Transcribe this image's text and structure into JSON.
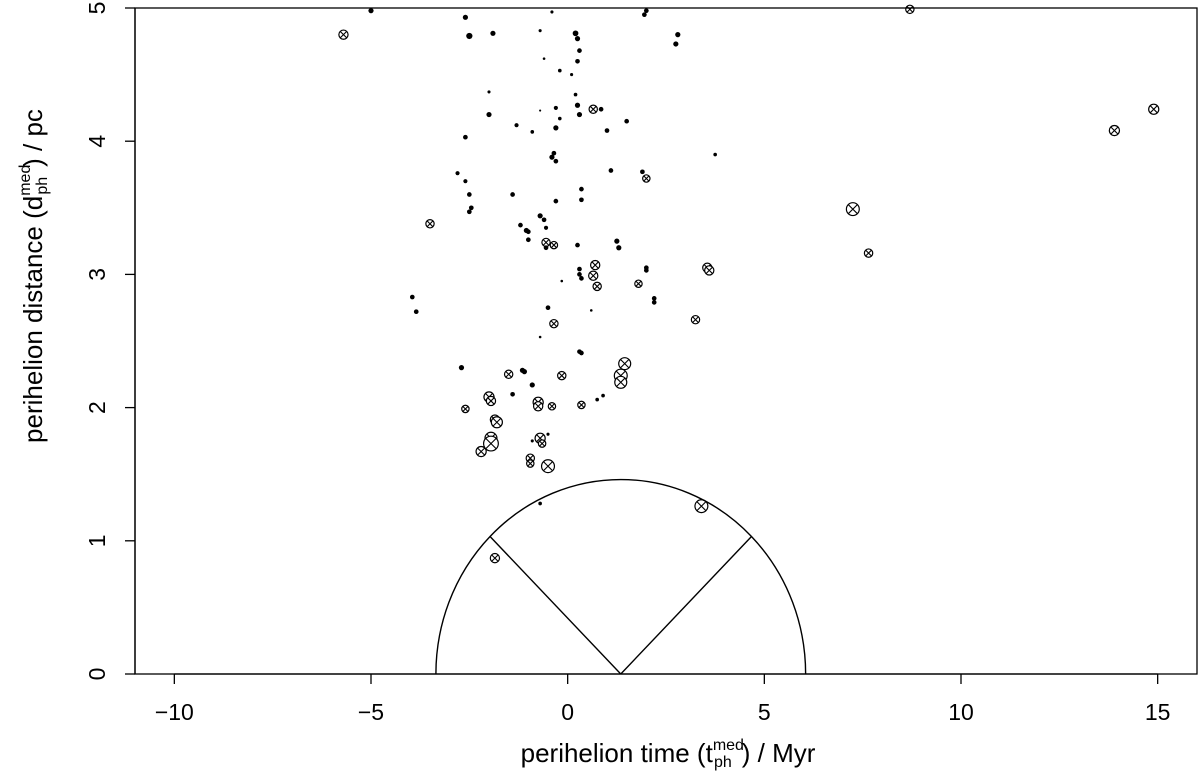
{
  "chart_data": {
    "type": "scatter",
    "xlabel": {
      "prefix": "perihelion time (t",
      "sup": "med",
      "sub": "ph",
      "suffix": ") / Myr"
    },
    "ylabel": {
      "prefix": "perihelion distance (d",
      "sup": "med",
      "sub": "ph",
      "suffix": ") / pc"
    },
    "xlim": [
      -11,
      16
    ],
    "ylim": [
      0,
      5
    ],
    "x_ticks": [
      -10,
      -5,
      0,
      5,
      10,
      15
    ],
    "x_tick_labels": [
      "−10",
      "−5",
      "0",
      "5",
      "10",
      "15"
    ],
    "y_ticks": [
      0,
      1,
      2,
      3,
      4,
      5
    ],
    "y_tick_labels": [
      "0",
      "1",
      "2",
      "3",
      "4",
      "5"
    ],
    "grid": false,
    "overlay": {
      "semicircle_center": [
        1.35,
        0
      ],
      "semicircle_radius_x": 4.7,
      "semicircle_top_y": 1.46,
      "radial_line_angles_deg": [
        45,
        135
      ]
    },
    "marker_legend": {
      "dot": "filled dot",
      "crossed": "circle with cross"
    },
    "points": [
      {
        "x": -5.7,
        "y": 4.8,
        "m": "c",
        "s": 1
      },
      {
        "x": -5.0,
        "y": 4.98,
        "m": "d",
        "s": 1
      },
      {
        "x": -2.6,
        "y": 4.93,
        "m": "d",
        "s": 1
      },
      {
        "x": -2.5,
        "y": 4.79,
        "m": "d",
        "s": 1.2
      },
      {
        "x": -1.9,
        "y": 4.81,
        "m": "d",
        "s": 1
      },
      {
        "x": -0.7,
        "y": 4.83,
        "m": "d",
        "s": 0.6
      },
      {
        "x": -0.4,
        "y": 4.97,
        "m": "d",
        "s": 0.6
      },
      {
        "x": 0.2,
        "y": 4.81,
        "m": "d",
        "s": 1.1
      },
      {
        "x": 0.25,
        "y": 4.77,
        "m": "d",
        "s": 1
      },
      {
        "x": 0.3,
        "y": 4.68,
        "m": "d",
        "s": 0.9
      },
      {
        "x": 0.25,
        "y": 4.6,
        "m": "d",
        "s": 0.9
      },
      {
        "x": -0.2,
        "y": 4.53,
        "m": "d",
        "s": 0.7
      },
      {
        "x": -0.6,
        "y": 4.62,
        "m": "d",
        "s": 0.5
      },
      {
        "x": 0.1,
        "y": 4.5,
        "m": "d",
        "s": 0.6
      },
      {
        "x": 1.95,
        "y": 4.95,
        "m": "d",
        "s": 0.9
      },
      {
        "x": 2.0,
        "y": 4.98,
        "m": "d",
        "s": 0.9
      },
      {
        "x": 2.8,
        "y": 4.8,
        "m": "d",
        "s": 1
      },
      {
        "x": 2.75,
        "y": 4.73,
        "m": "d",
        "s": 1
      },
      {
        "x": 8.7,
        "y": 4.99,
        "m": "c",
        "s": 0.9
      },
      {
        "x": -2.0,
        "y": 4.37,
        "m": "d",
        "s": 0.6
      },
      {
        "x": -2.0,
        "y": 4.2,
        "m": "d",
        "s": 1
      },
      {
        "x": -1.3,
        "y": 4.12,
        "m": "d",
        "s": 0.8
      },
      {
        "x": -0.9,
        "y": 4.07,
        "m": "d",
        "s": 0.7
      },
      {
        "x": -0.7,
        "y": 4.23,
        "m": "d",
        "s": 0.4
      },
      {
        "x": -0.3,
        "y": 4.25,
        "m": "d",
        "s": 0.8
      },
      {
        "x": -0.2,
        "y": 4.17,
        "m": "d",
        "s": 0.7
      },
      {
        "x": 0.2,
        "y": 4.35,
        "m": "d",
        "s": 0.7
      },
      {
        "x": 0.25,
        "y": 4.27,
        "m": "d",
        "s": 1
      },
      {
        "x": 0.3,
        "y": 4.2,
        "m": "d",
        "s": 1
      },
      {
        "x": -0.3,
        "y": 4.1,
        "m": "d",
        "s": 1
      },
      {
        "x": 0.65,
        "y": 4.24,
        "m": "c",
        "s": 0.9
      },
      {
        "x": 0.85,
        "y": 4.24,
        "m": "d",
        "s": 0.9
      },
      {
        "x": 1.0,
        "y": 4.08,
        "m": "d",
        "s": 0.9
      },
      {
        "x": 1.5,
        "y": 4.15,
        "m": "d",
        "s": 0.9
      },
      {
        "x": -2.6,
        "y": 4.03,
        "m": "d",
        "s": 0.9
      },
      {
        "x": -0.4,
        "y": 3.88,
        "m": "d",
        "s": 1
      },
      {
        "x": -0.35,
        "y": 3.91,
        "m": "d",
        "s": 0.9
      },
      {
        "x": -0.3,
        "y": 3.85,
        "m": "d",
        "s": 0.9
      },
      {
        "x": -2.8,
        "y": 3.76,
        "m": "d",
        "s": 0.8
      },
      {
        "x": -2.6,
        "y": 3.7,
        "m": "d",
        "s": 0.8
      },
      {
        "x": -2.5,
        "y": 3.6,
        "m": "d",
        "s": 0.9
      },
      {
        "x": -2.45,
        "y": 3.5,
        "m": "d",
        "s": 0.9
      },
      {
        "x": -2.5,
        "y": 3.47,
        "m": "d",
        "s": 0.9
      },
      {
        "x": -1.4,
        "y": 3.6,
        "m": "d",
        "s": 0.9
      },
      {
        "x": -0.3,
        "y": 3.55,
        "m": "d",
        "s": 0.9
      },
      {
        "x": 0.35,
        "y": 3.64,
        "m": "d",
        "s": 0.9
      },
      {
        "x": 0.35,
        "y": 3.56,
        "m": "d",
        "s": 0.9
      },
      {
        "x": 1.1,
        "y": 3.78,
        "m": "d",
        "s": 0.9
      },
      {
        "x": 1.9,
        "y": 3.77,
        "m": "d",
        "s": 0.9
      },
      {
        "x": 2.0,
        "y": 3.72,
        "m": "c",
        "s": 0.8
      },
      {
        "x": 3.75,
        "y": 3.9,
        "m": "d",
        "s": 0.7
      },
      {
        "x": -3.5,
        "y": 3.38,
        "m": "c",
        "s": 0.9
      },
      {
        "x": -0.7,
        "y": 3.44,
        "m": "d",
        "s": 1
      },
      {
        "x": -0.6,
        "y": 3.41,
        "m": "d",
        "s": 0.9
      },
      {
        "x": -0.55,
        "y": 3.35,
        "m": "d",
        "s": 0.8
      },
      {
        "x": -1.2,
        "y": 3.37,
        "m": "d",
        "s": 0.9
      },
      {
        "x": -1.05,
        "y": 3.33,
        "m": "d",
        "s": 1
      },
      {
        "x": -1.0,
        "y": 3.32,
        "m": "d",
        "s": 0.9
      },
      {
        "x": -1.0,
        "y": 3.26,
        "m": "d",
        "s": 0.9
      },
      {
        "x": -0.55,
        "y": 3.24,
        "m": "c",
        "s": 0.9
      },
      {
        "x": -0.55,
        "y": 3.2,
        "m": "d",
        "s": 0.9
      },
      {
        "x": -0.35,
        "y": 3.22,
        "m": "c",
        "s": 0.8
      },
      {
        "x": 0.25,
        "y": 3.22,
        "m": "d",
        "s": 0.9
      },
      {
        "x": 1.25,
        "y": 3.25,
        "m": "d",
        "s": 1
      },
      {
        "x": 1.3,
        "y": 3.2,
        "m": "d",
        "s": 1
      },
      {
        "x": 0.3,
        "y": 3.04,
        "m": "d",
        "s": 0.9
      },
      {
        "x": 0.3,
        "y": 3.0,
        "m": "d",
        "s": 0.9
      },
      {
        "x": 0.35,
        "y": 2.97,
        "m": "d",
        "s": 0.9
      },
      {
        "x": -0.15,
        "y": 2.95,
        "m": "d",
        "s": 0.5
      },
      {
        "x": 0.7,
        "y": 3.07,
        "m": "c",
        "s": 1
      },
      {
        "x": 0.65,
        "y": 2.99,
        "m": "c",
        "s": 1
      },
      {
        "x": 0.75,
        "y": 2.91,
        "m": "c",
        "s": 0.9
      },
      {
        "x": 2.0,
        "y": 3.05,
        "m": "d",
        "s": 0.9
      },
      {
        "x": 2.0,
        "y": 3.03,
        "m": "d",
        "s": 0.9
      },
      {
        "x": 1.8,
        "y": 2.93,
        "m": "c",
        "s": 0.8
      },
      {
        "x": 3.55,
        "y": 3.05,
        "m": "c",
        "s": 1
      },
      {
        "x": 3.6,
        "y": 3.03,
        "m": "c",
        "s": 1
      },
      {
        "x": 7.25,
        "y": 3.49,
        "m": "c",
        "s": 1.4
      },
      {
        "x": 7.65,
        "y": 3.16,
        "m": "c",
        "s": 0.9
      },
      {
        "x": 13.9,
        "y": 4.08,
        "m": "c",
        "s": 1.1
      },
      {
        "x": 14.9,
        "y": 4.24,
        "m": "c",
        "s": 1.1
      },
      {
        "x": -3.95,
        "y": 2.83,
        "m": "d",
        "s": 0.9
      },
      {
        "x": -3.85,
        "y": 2.72,
        "m": "d",
        "s": 0.9
      },
      {
        "x": 2.2,
        "y": 2.82,
        "m": "d",
        "s": 0.9
      },
      {
        "x": 2.2,
        "y": 2.79,
        "m": "d",
        "s": 0.9
      },
      {
        "x": -0.5,
        "y": 2.75,
        "m": "d",
        "s": 0.9
      },
      {
        "x": 0.6,
        "y": 2.73,
        "m": "d",
        "s": 0.5
      },
      {
        "x": -0.35,
        "y": 2.63,
        "m": "c",
        "s": 0.9
      },
      {
        "x": 3.25,
        "y": 2.66,
        "m": "c",
        "s": 0.9
      },
      {
        "x": -0.7,
        "y": 2.53,
        "m": "d",
        "s": 0.5
      },
      {
        "x": 0.3,
        "y": 2.42,
        "m": "d",
        "s": 0.9
      },
      {
        "x": 0.35,
        "y": 2.41,
        "m": "d",
        "s": 0.9
      },
      {
        "x": -2.7,
        "y": 2.3,
        "m": "d",
        "s": 1
      },
      {
        "x": -1.5,
        "y": 2.25,
        "m": "c",
        "s": 0.9
      },
      {
        "x": -1.15,
        "y": 2.28,
        "m": "d",
        "s": 1
      },
      {
        "x": -1.1,
        "y": 2.27,
        "m": "d",
        "s": 1
      },
      {
        "x": -0.9,
        "y": 2.17,
        "m": "d",
        "s": 1
      },
      {
        "x": -0.15,
        "y": 2.24,
        "m": "c",
        "s": 0.9
      },
      {
        "x": 1.45,
        "y": 2.33,
        "m": "c",
        "s": 1.3
      },
      {
        "x": 1.35,
        "y": 2.24,
        "m": "c",
        "s": 1.4
      },
      {
        "x": 1.35,
        "y": 2.19,
        "m": "c",
        "s": 1.3
      },
      {
        "x": -1.4,
        "y": 2.1,
        "m": "d",
        "s": 0.9
      },
      {
        "x": -2.0,
        "y": 2.08,
        "m": "c",
        "s": 1.1
      },
      {
        "x": -1.95,
        "y": 2.05,
        "m": "c",
        "s": 1
      },
      {
        "x": -0.75,
        "y": 2.04,
        "m": "c",
        "s": 1.1
      },
      {
        "x": -0.75,
        "y": 2.01,
        "m": "c",
        "s": 1
      },
      {
        "x": -0.4,
        "y": 2.01,
        "m": "c",
        "s": 0.8
      },
      {
        "x": -2.6,
        "y": 1.99,
        "m": "c",
        "s": 0.8
      },
      {
        "x": 0.35,
        "y": 2.02,
        "m": "c",
        "s": 0.8
      },
      {
        "x": 0.75,
        "y": 2.06,
        "m": "d",
        "s": 0.7
      },
      {
        "x": 0.9,
        "y": 2.09,
        "m": "d",
        "s": 0.7
      },
      {
        "x": -1.85,
        "y": 1.91,
        "m": "c",
        "s": 1
      },
      {
        "x": -1.8,
        "y": 1.89,
        "m": "c",
        "s": 1.2
      },
      {
        "x": -0.7,
        "y": 1.77,
        "m": "c",
        "s": 1.1
      },
      {
        "x": -0.65,
        "y": 1.73,
        "m": "c",
        "s": 0.8
      },
      {
        "x": -0.5,
        "y": 1.8,
        "m": "d",
        "s": 0.6
      },
      {
        "x": -0.9,
        "y": 1.75,
        "m": "d",
        "s": 0.6
      },
      {
        "x": -1.95,
        "y": 1.77,
        "m": "c",
        "s": 1.3
      },
      {
        "x": -1.95,
        "y": 1.73,
        "m": "c",
        "s": 1.6
      },
      {
        "x": -2.2,
        "y": 1.67,
        "m": "c",
        "s": 1.1
      },
      {
        "x": -0.95,
        "y": 1.62,
        "m": "c",
        "s": 0.9
      },
      {
        "x": -0.95,
        "y": 1.58,
        "m": "c",
        "s": 0.8
      },
      {
        "x": -0.5,
        "y": 1.56,
        "m": "c",
        "s": 1.4
      },
      {
        "x": -0.7,
        "y": 1.28,
        "m": "d",
        "s": 0.7
      },
      {
        "x": 3.4,
        "y": 1.26,
        "m": "c",
        "s": 1.4
      },
      {
        "x": -1.85,
        "y": 0.87,
        "m": "c",
        "s": 1
      }
    ]
  }
}
